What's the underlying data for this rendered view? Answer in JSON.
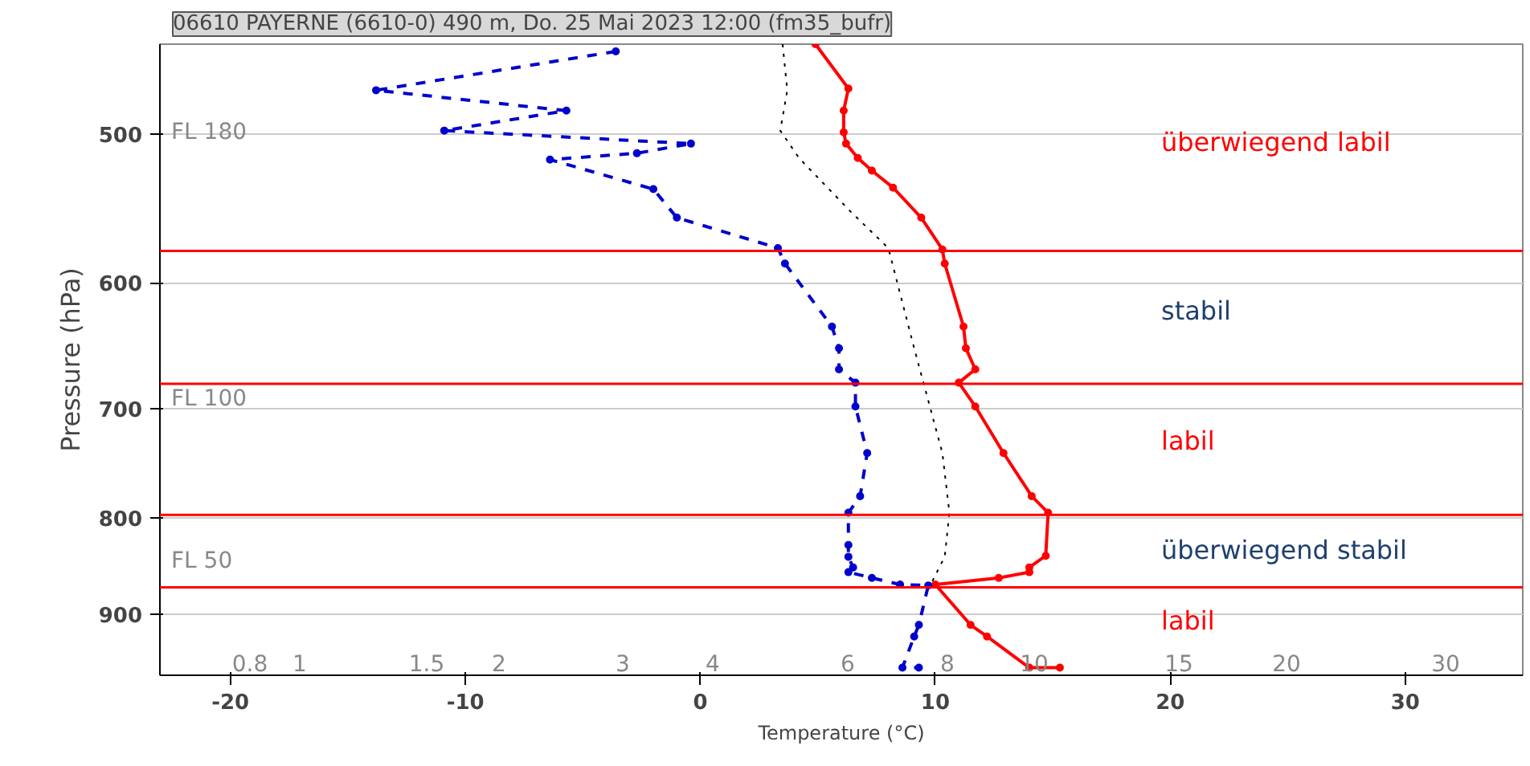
{
  "chart_data": {
    "type": "line",
    "title": "06610 PAYERNE (6610-0) 490 m, Do. 25 Mai 2023 12:00 (fm35_bufr)",
    "xlabel": "Temperature (°C)",
    "ylabel": "Pressure (hPa)",
    "xlim": [
      -23,
      35
    ],
    "xticks": [
      -20,
      -10,
      0,
      10,
      20,
      30
    ],
    "ylim": [
      970,
      448
    ],
    "yticks": [
      500,
      600,
      700,
      800,
      900
    ],
    "log": "y",
    "grid": "y",
    "marker": "circle",
    "series": [
      {
        "color": "#ff0000",
        "line_style": "solid",
        "x": [
          4.9,
          6.3,
          6.1,
          6.1,
          6.2,
          6.7,
          7.3,
          8.2,
          9.4,
          10.3,
          10.4,
          11.2,
          11.3,
          11.7,
          11.0,
          11.7,
          12.9,
          14.1,
          14.8,
          14.7,
          14.0,
          14.0,
          12.7,
          10.0,
          11.5,
          12.2,
          14.0,
          15.3
        ],
        "values": [
          448,
          473,
          486,
          499,
          506,
          515,
          523,
          534,
          554,
          576,
          586,
          633,
          650,
          667,
          678,
          698,
          739,
          779,
          795,
          838,
          850,
          855,
          861,
          868,
          912,
          925,
          961,
          961
        ]
      },
      {
        "color": "#0000cc",
        "line_style": "dashed",
        "x": [
          -3.6,
          -13.8,
          -5.7,
          -10.9,
          -0.4,
          -2.7,
          -6.4,
          -2.0,
          -1.0,
          3.3,
          3.6,
          5.6,
          5.9,
          5.9,
          6.6,
          6.6,
          7.1,
          6.8,
          6.3,
          6.3,
          6.3,
          6.5,
          6.3,
          7.3,
          8.5,
          9.7,
          9.3,
          9.1,
          8.6,
          9.3
        ],
        "values": [
          452,
          474,
          486,
          498,
          506,
          512,
          516,
          535,
          554,
          575,
          586,
          633,
          650,
          667,
          678,
          698,
          739,
          779,
          795,
          827,
          839,
          850,
          855,
          861,
          868,
          869,
          912,
          925,
          961,
          961
        ]
      },
      {
        "color": "#000000",
        "line_style": "dotted",
        "marker": "none",
        "x": [
          3.5,
          3.7,
          3.4,
          4.2,
          6.4,
          8.0,
          9.1,
          10.3,
          10.6,
          10.4,
          9.8
        ],
        "values": [
          448,
          474,
          498,
          515,
          550,
          575,
          650,
          739,
          795,
          839,
          868
        ]
      }
    ],
    "ref_lines": [
      {
        "axis": "y",
        "value": 577,
        "color": "#ff0000"
      },
      {
        "axis": "y",
        "value": 679,
        "color": "#ff0000"
      },
      {
        "axis": "y",
        "value": 797,
        "color": "#ff0000"
      },
      {
        "axis": "y",
        "value": 871,
        "color": "#ff0000"
      }
    ],
    "annotations": [
      "überwiegend labil",
      "stabil",
      "labil",
      "überwiegend stabil",
      "labil",
      "FL 180",
      "FL 100",
      "FL 50",
      "0.8",
      "1",
      "1.5",
      "2",
      "3",
      "4",
      "6",
      "8",
      "10",
      "15",
      "20",
      "30"
    ]
  }
}
